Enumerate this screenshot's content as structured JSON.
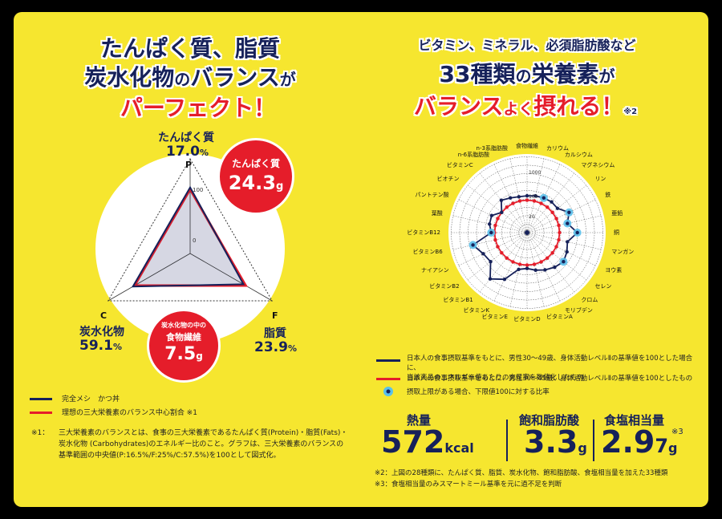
{
  "left": {
    "headline": {
      "line1": "たんぱく質、脂質",
      "line2a": "炭水化物",
      "line2b": "の",
      "line2c": "バランス",
      "line2d": "が",
      "line3": "パーフェクト！"
    },
    "protein": {
      "label": "たんぱく質",
      "value": "17.0",
      "unit": "%"
    },
    "carb": {
      "label": "炭水化物",
      "value": "59.1",
      "unit": "%"
    },
    "fat": {
      "label": "脂質",
      "value": "23.9",
      "unit": "%"
    },
    "axis_letters": {
      "p": "P",
      "c": "C",
      "f": "F"
    },
    "ticks": {
      "t100": "100",
      "t0": "0"
    },
    "bubble_protein": {
      "label": "たんぱく質",
      "value": "24.3",
      "unit": "g"
    },
    "bubble_fiber": {
      "label1": "炭水化物の中の",
      "label2": "食物繊維",
      "value": "7.5",
      "unit": "g"
    },
    "legend": {
      "item1": "完全メシ　かつ丼",
      "item2": "理想の三大栄養素のバランス中心割合 ※1"
    },
    "note": {
      "marker": "※1：",
      "line1": "三大栄養素のバランスとは、食事の三大栄養素であるたんぱく質(Protein)・脂質(Fats)・",
      "line2": "炭水化物 (Carbohydrates)のエネルギー比のこと。グラフは、三大栄養素のバランスの",
      "line3": "基準範囲の中央値(P:16.5%/F:25%/C:57.5%)を100として図式化。"
    }
  },
  "right": {
    "headline": {
      "line1": "ビタミン、ミネラル、必須脂肪酸など",
      "line2a": "33種類",
      "line2b": "の",
      "line2c": "栄養素",
      "line2d": "が",
      "line3a": "バランス",
      "line3b": "よく",
      "line3c": "摂れる！",
      "line3d": "※2"
    },
    "radar_ticks": {
      "t1000": "1000",
      "t100": "100",
      "t20": "20"
    },
    "nutrients": [
      "食物繊維",
      "カリウム",
      "カルシウム",
      "マグネシウム",
      "リン",
      "鉄",
      "亜鉛",
      "銅",
      "マンガン",
      "ヨウ素",
      "セレン",
      "クロム",
      "モリブデン",
      "ビタミンA",
      "ビタミンD",
      "ビタミンE",
      "ビタミンK",
      "ビタミンB1",
      "ビタミンB2",
      "ナイアシン",
      "ビタミンB6",
      "ビタミンB12",
      "葉酸",
      "パントテン酸",
      "ビオチン",
      "ビタミンC",
      "n-6系脂肪酸",
      "n-3系脂肪酸"
    ],
    "legend": {
      "item1_line1": "日本人の食事摂取基準をもとに、男性30〜49歳、身体活動レベルⅡの基準値を100とした場合に、",
      "item1_line2": "当該商品のエネルギー値あたりの充足率を数値化したもの",
      "item2": "日本人の食事摂取基準をもとに、男性30〜49歳、身体活動レベルⅡの基準値を100としたもの",
      "item3": "摂取上限がある場合、下限値100に対する比率"
    },
    "stats": {
      "energy": {
        "label": "熱量",
        "value": "572",
        "unit": "kcal"
      },
      "satfat": {
        "label": "飽和脂肪酸",
        "value": "3.3",
        "unit": "g"
      },
      "salt": {
        "label": "食塩相当量",
        "value1": "2.9",
        "value2": "7",
        "unit": "g",
        "note": "※3"
      }
    },
    "notes": {
      "n2": "※2：上図の28種類に、たんぱく質、脂質、炭水化物、飽和脂肪酸、食塩相当量を加えた33種類",
      "n3": "※3：食塩相当量のみスマートミール基準を元に過不足を判断"
    }
  },
  "colors": {
    "navy": "#16215a",
    "red": "#e51d2a",
    "yellow": "#f6e62f",
    "cyan": "#5bc0eb"
  },
  "chart_data": [
    {
      "type": "radar",
      "title": "",
      "categories": [
        "P",
        "F",
        "C"
      ],
      "series": [
        {
          "name": "完全メシ　かつ丼",
          "values": [
            103,
            96,
            103
          ]
        },
        {
          "name": "理想の三大栄養素のバランス中心割合 ※1",
          "values": [
            100,
            100,
            100
          ]
        }
      ]
    },
    {
      "type": "radar",
      "title": "",
      "scale": "log",
      "ticks": [
        20,
        100,
        1000
      ],
      "categories": [
        "食物繊維",
        "カリウム",
        "カルシウム",
        "マグネシウム",
        "リン",
        "鉄",
        "亜鉛",
        "銅",
        "マンガン",
        "ヨウ素",
        "セレン",
        "クロム",
        "モリブデン",
        "ビタミンA",
        "ビタミンD",
        "ビタミンE",
        "ビタミンK",
        "ビタミンB1",
        "ビタミンB2",
        "ナイアシン",
        "ビタミンB6",
        "ビタミンB12",
        "葉酸",
        "パントテン酸",
        "ビオチン",
        "ビタミンC",
        "n-6系脂肪酸",
        "n-3系脂肪酸"
      ],
      "series": [
        {
          "name": "product",
          "values": [
            140,
            150,
            160,
            170,
            165,
            300,
            200,
            400,
            200,
            250,
            300,
            250,
            200,
            160,
            130,
            150,
            450,
            800,
            300,
            350,
            600,
            130,
            160,
            170,
            100,
            200,
            160,
            140
          ]
        },
        {
          "name": "reference",
          "values": [
            100,
            100,
            100,
            100,
            100,
            100,
            100,
            100,
            100,
            100,
            100,
            100,
            100,
            100,
            100,
            100,
            100,
            100,
            100,
            100,
            100,
            100,
            100,
            100,
            100,
            100,
            100,
            100
          ]
        }
      ],
      "upper_limit_markers": [
        "カルシウム",
        "鉄",
        "亜鉛",
        "銅",
        "セレン",
        "ビタミンB6",
        "ビタミンB12"
      ]
    }
  ]
}
